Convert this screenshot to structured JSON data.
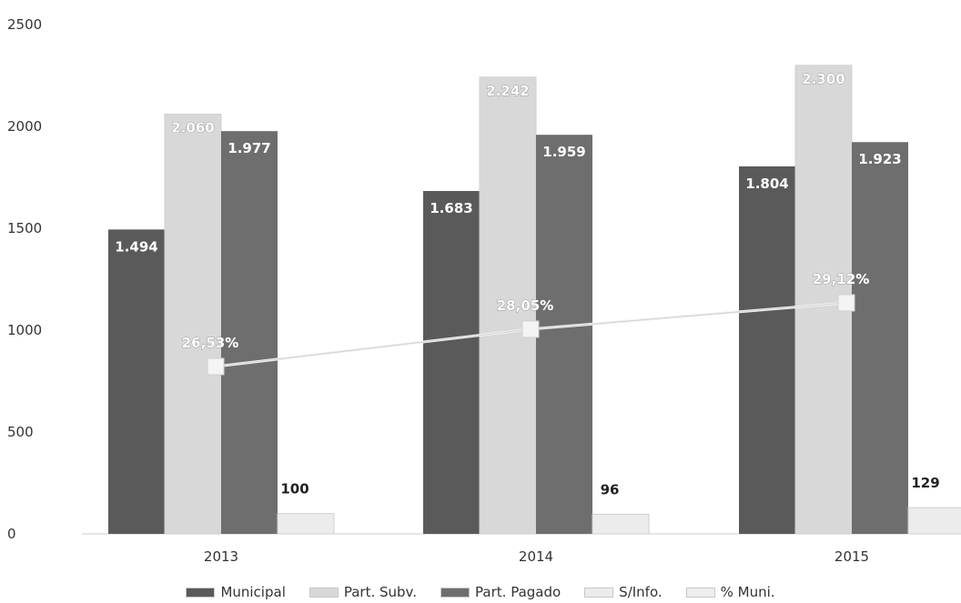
{
  "chart_data": {
    "type": "bar",
    "categories": [
      "2013",
      "2014",
      "2015"
    ],
    "ylim": [
      0,
      2500
    ],
    "yticks": [
      "0",
      "500",
      "1000",
      "1500",
      "2000",
      "2500"
    ],
    "series": [
      {
        "name": "Municipal",
        "values": [
          1494,
          1683,
          1804
        ],
        "labels": [
          "1.494",
          "1.683",
          "1.804"
        ],
        "color": "#5a5a5a"
      },
      {
        "name": "Part. Subv.",
        "values": [
          2060,
          2242,
          2300
        ],
        "labels": [
          "2.060",
          "2.242",
          "2.300"
        ],
        "color": "#d8d8d8"
      },
      {
        "name": "Part. Pagado",
        "values": [
          1977,
          1959,
          1923
        ],
        "labels": [
          "1.977",
          "1.959",
          "1.923"
        ],
        "color": "#6e6e6e"
      },
      {
        "name": "S/Info.",
        "values": [
          100,
          96,
          129
        ],
        "labels": [
          "100",
          "96",
          "129"
        ],
        "color": "#ececec"
      }
    ],
    "line_series": {
      "name": "% Muni.",
      "values": [
        26.53,
        28.05,
        29.12
      ],
      "labels": [
        "26,53%",
        "28,05%",
        "29,12%"
      ],
      "color": "#eeeeee"
    },
    "legend_position": "bottom",
    "grid": false
  }
}
